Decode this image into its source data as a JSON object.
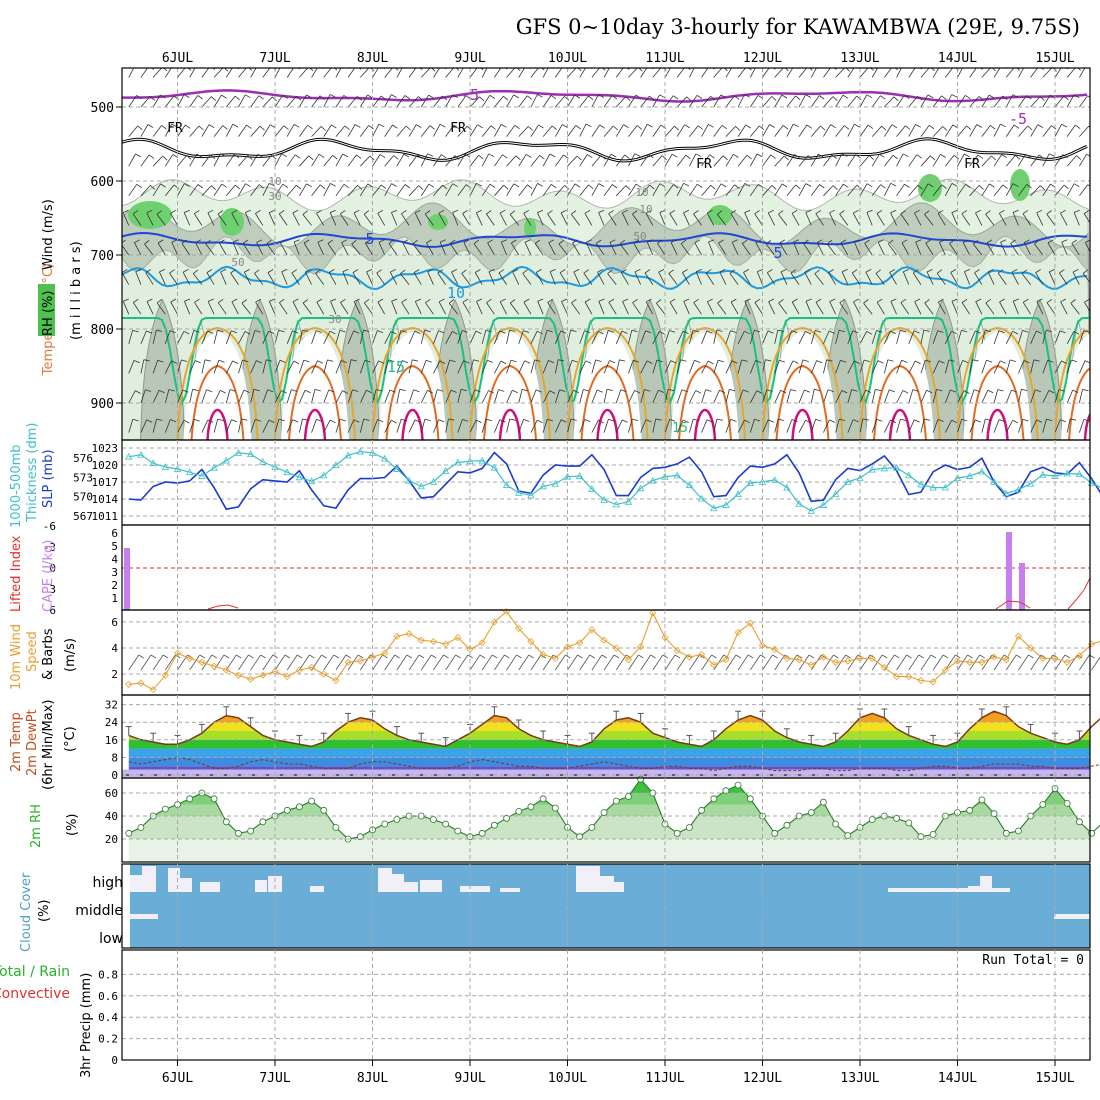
{
  "title": "GFS 0~10day 3-hourly for KAWAMBWA (29E, 9.75S)",
  "days": [
    "6JUL",
    "7JUL",
    "8JUL",
    "9JUL",
    "10JUL",
    "11JUL",
    "12JUL",
    "13JUL",
    "14JUL",
    "15JUL"
  ],
  "colors": {
    "grid": "#a8a8a8",
    "rh_light": "#e4f2e2",
    "rh_mid": "#b9c7b6",
    "rh_green": "#6fd06f",
    "temp_neg5": "#9b2fb3",
    "temp_5": "#2146d6",
    "temp_10": "#1e9ae0",
    "temp_15": "#19c181",
    "temp_20": "#e8a530",
    "temp_25": "#e36b1f",
    "temp_30": "#d0107a",
    "slp": "#1b3bcf",
    "thickness": "#3ec0c8",
    "cape": "#c77ff0",
    "li": "#e03030",
    "wind10": "#e8a02f",
    "cloud": "#6aadd6"
  },
  "panels": {
    "upper": {
      "ylabel_wind": "Wind (m/s)",
      "ylabel_temp": "Temperature (°C)",
      "ylabel_rh": "RH (%)",
      "ylabel_mb": "(m i l l i b a r s)",
      "levels": [
        "500",
        "600",
        "700",
        "800",
        "900"
      ],
      "contour_labels": {
        "t_neg5": "-5",
        "t_neg5b": "-5",
        "t_5": "5",
        "t_5b": "5",
        "t_10": "10",
        "t_15": "15",
        "t_15b": "15",
        "fr": "FR",
        "rh_10": "10",
        "rh_30": "30",
        "rh_50": "50",
        "rh_50b": "50",
        "rh_30b": "30",
        "rh_10b": "10",
        "rh_10c": "10"
      }
    },
    "slp": {
      "ylabel1": "1000-500mb",
      "ylabel2": "Thickness (dm)",
      "ylabel3": "SLP (mb)",
      "thk_ticks": [
        "576",
        "573",
        "570",
        "567"
      ],
      "slp_ticks": [
        "1023",
        "1020",
        "1017",
        "1014",
        "1011"
      ]
    },
    "cape": {
      "ylabel1": "Lifted Index",
      "ylabel2": "CAPE (J/kg)",
      "li_ticks": [
        "-6",
        "-3",
        "0",
        "3",
        "6"
      ],
      "cape_ticks": [
        "6",
        "5",
        "4",
        "3",
        "2",
        "1"
      ]
    },
    "wind": {
      "ylabel1": "10m Wind",
      "ylabel2": "Speed",
      "ylabel3": "& Barbs",
      "ylabel4": "(m/s)",
      "ticks": [
        "6",
        "4",
        "2"
      ]
    },
    "temp": {
      "ylabel1": "2m Temp",
      "ylabel2": "2m DewPt",
      "ylabel3": "(6hr Min/Max)",
      "ylabel4": "(°C)",
      "ticks": [
        "32",
        "24",
        "16",
        "8",
        "0"
      ]
    },
    "rh": {
      "ylabel1": "2m RH",
      "ylabel2": "(%)",
      "ticks": [
        "60",
        "40",
        "20"
      ]
    },
    "cloud": {
      "ylabel1": "Cloud Cover",
      "ylabel2": "(%)",
      "rows": [
        "high",
        "middle",
        "low"
      ]
    },
    "precip": {
      "ylabel1": "Total / Rain",
      "ylabel2": "Convective",
      "ylabel3": "3hr Precip (mm)",
      "ticks": [
        "0.8",
        "0.6",
        "0.4",
        "0.2",
        "0"
      ],
      "run_total": "Run Total = 0"
    }
  },
  "chart_data": {
    "type": "line",
    "x_start": "5JUL 12Z",
    "x_step_hours": 3,
    "slp_mb": [
      1014.0,
      1013.8,
      1016.2,
      1017.0,
      1016.8,
      1017.2,
      1019.2,
      1016.0,
      1012.2,
      1012.6,
      1015.8,
      1017.4,
      1017.2,
      1017.0,
      1019.0,
      1015.6,
      1012.8,
      1012.4,
      1015.6,
      1017.6,
      1017.6,
      1017.8,
      1019.8,
      1017.2,
      1014.2,
      1014.4,
      1016.6,
      1018.8,
      1018.6,
      1019.4,
      1022.2,
      1020.2,
      1015.4,
      1015.0,
      1018.2,
      1020.0,
      1019.8,
      1019.8,
      1021.8,
      1019.2,
      1014.6,
      1014.6,
      1017.8,
      1019.4,
      1019.6,
      1020.2,
      1021.4,
      1018.8,
      1014.4,
      1014.6,
      1017.8,
      1019.8,
      1019.6,
      1020.2,
      1021.8,
      1018.6,
      1013.6,
      1013.8,
      1017.4,
      1019.4,
      1019.0,
      1020.2,
      1021.6,
      1019.0,
      1014.8,
      1015.2,
      1018.8,
      1020.0,
      1019.2,
      1019.6,
      1021.2,
      1017.0,
      1014.4,
      1015.2,
      1018.8,
      1019.6,
      1018.6,
      1018.4,
      1020.4,
      1017.6,
      1014.2,
      1014.4,
      1018.6,
      1020.0
    ],
    "thickness_dm": [
      576.2,
      576.5,
      575.2,
      574.6,
      574.3,
      573.8,
      573.2,
      574.5,
      575.6,
      576.8,
      576.6,
      575.4,
      574.6,
      573.8,
      573.0,
      572.4,
      573.3,
      574.9,
      576.4,
      577.0,
      576.8,
      575.9,
      574.3,
      572.5,
      571.6,
      572.3,
      574.0,
      575.3,
      575.5,
      575.6,
      574.5,
      571.8,
      570.6,
      570.2,
      571.6,
      572.0,
      573.1,
      573.2,
      571.2,
      569.5,
      568.8,
      569.2,
      571.3,
      572.5,
      573.1,
      573.3,
      571.8,
      569.7,
      568.2,
      568.7,
      570.4,
      572.1,
      572.3,
      572.6,
      571.4,
      568.9,
      567.8,
      568.7,
      570.4,
      572.3,
      572.9,
      574.2,
      574.4,
      574.5,
      573.3,
      571.9,
      571.4,
      571.4,
      572.9,
      573.2,
      573.9,
      572.3,
      570.5,
      571.1,
      572.0,
      573.4,
      573.2,
      573.6,
      573.5,
      572.1,
      571.2,
      570.8,
      569.2,
      567.5
    ],
    "wind10_ms": [
      1.2,
      1.3,
      0.8,
      1.9,
      3.6,
      3.2,
      2.9,
      2.6,
      2.3,
      1.9,
      1.6,
      1.9,
      2.2,
      1.8,
      2.3,
      2.5,
      2.0,
      1.5,
      2.9,
      3.0,
      3.3,
      3.6,
      4.9,
      5.1,
      4.6,
      4.5,
      4.3,
      4.8,
      3.9,
      4.4,
      6.0,
      6.8,
      5.5,
      4.5,
      3.5,
      3.2,
      4.1,
      4.4,
      5.4,
      4.6,
      4.0,
      3.1,
      4.1,
      6.7,
      4.8,
      3.8,
      3.3,
      3.5,
      2.7,
      3.1,
      5.2,
      5.9,
      4.2,
      3.9,
      3.2,
      3.1,
      2.7,
      3.3,
      2.9,
      3.0,
      3.2,
      3.2,
      2.5,
      1.8,
      1.8,
      1.5,
      1.4,
      2.3,
      3.0,
      2.9,
      2.9,
      3.3,
      3.1,
      4.9,
      4.0,
      3.2,
      3.2,
      2.9,
      3.4,
      4.3,
      4.6,
      5.6,
      2.9,
      2.8
    ],
    "temp2m_c": [
      18,
      16,
      15,
      14,
      14,
      16,
      19,
      24,
      27,
      26,
      22,
      18,
      16,
      15,
      14,
      13,
      15,
      20,
      24,
      26,
      25,
      21,
      18,
      16,
      15,
      14,
      13,
      16,
      19,
      23,
      27,
      26,
      21,
      18,
      16,
      15,
      14,
      13,
      15,
      21,
      25,
      26,
      24,
      19,
      17,
      15,
      14,
      13,
      16,
      21,
      25,
      27,
      25,
      20,
      17,
      15,
      14,
      13,
      15,
      20,
      26,
      28,
      26,
      21,
      18,
      16,
      14,
      13,
      15,
      21,
      26,
      29,
      27,
      22,
      19,
      17,
      15,
      14,
      16,
      22,
      27,
      28,
      24,
      20
    ],
    "dewpt2m_c": [
      6,
      5,
      6,
      7,
      8,
      7,
      5,
      3,
      3,
      4,
      6,
      7,
      6,
      5,
      5,
      4,
      3,
      3,
      3,
      5,
      6,
      6,
      5,
      4,
      3,
      3,
      3,
      4,
      6,
      7,
      6,
      5,
      4,
      4,
      3,
      3,
      3,
      4,
      5,
      6,
      5,
      4,
      3,
      3,
      4,
      4,
      3,
      3,
      2,
      3,
      4,
      4,
      3,
      2,
      2,
      2,
      3,
      3,
      2,
      2,
      3,
      3,
      3,
      2,
      2,
      3,
      4,
      4,
      3,
      3,
      4,
      5,
      5,
      5,
      4,
      4,
      3,
      3,
      3,
      4,
      5,
      4,
      3,
      4
    ],
    "rh2m_pct": [
      25,
      30,
      40,
      46,
      50,
      55,
      60,
      55,
      35,
      25,
      27,
      35,
      40,
      45,
      48,
      53,
      45,
      30,
      20,
      22,
      28,
      33,
      37,
      40,
      40,
      37,
      33,
      27,
      22,
      25,
      32,
      38,
      44,
      48,
      55,
      47,
      30,
      22,
      30,
      43,
      53,
      57,
      72,
      60,
      33,
      25,
      30,
      45,
      55,
      62,
      67,
      55,
      40,
      25,
      32,
      40,
      43,
      52,
      33,
      23,
      30,
      37,
      40,
      38,
      34,
      22,
      24,
      40,
      43,
      45,
      54,
      42,
      25,
      27,
      40,
      50,
      64,
      51,
      35,
      25,
      35,
      47,
      55,
      60
    ]
  }
}
